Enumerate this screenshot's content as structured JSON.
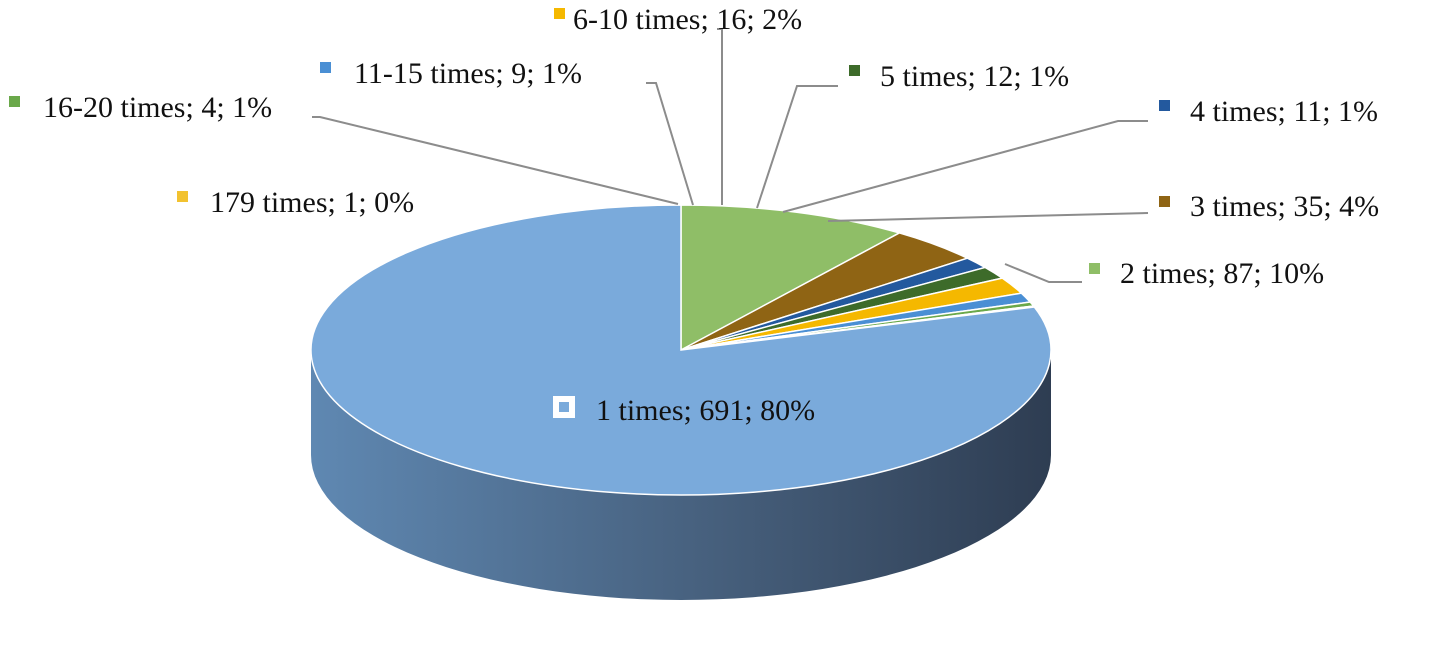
{
  "chart_data": {
    "type": "pie",
    "title": "",
    "slices": [
      {
        "label": "1 times; 691; 80%",
        "category": "1 times",
        "value": 691,
        "percent": 80,
        "color": "#7aaadb",
        "side_color": "#5b80a6"
      },
      {
        "label": "2 times; 87; 10%",
        "category": "2 times",
        "value": 87,
        "percent": 10,
        "color": "#8fbe67",
        "side_color": "#6a8f4b"
      },
      {
        "label": "3 times; 35; 4%",
        "category": "3 times",
        "value": 35,
        "percent": 4,
        "color": "#8f6414",
        "side_color": "#6b4a0e"
      },
      {
        "label": "4 times; 11; 1%",
        "category": "4 times",
        "value": 11,
        "percent": 1,
        "color": "#23599e",
        "side_color": "#1a4377"
      },
      {
        "label": "5 times; 12; 1%",
        "category": "5 times",
        "value": 12,
        "percent": 1,
        "color": "#3d6b2a",
        "side_color": "#2d501f"
      },
      {
        "label": "6-10 times; 16; 2%",
        "category": "6-10 times",
        "value": 16,
        "percent": 2,
        "color": "#f5b800",
        "side_color": "#b88a00"
      },
      {
        "label": "11-15 times; 9; 1%",
        "category": "11-15 times",
        "value": 9,
        "percent": 1,
        "color": "#4a8fd4",
        "side_color": "#376ba0"
      },
      {
        "label": "16-20 times; 4; 1%",
        "category": "16-20 times",
        "value": 4,
        "percent": 1,
        "color": "#6aa84a",
        "side_color": "#4f7e37"
      },
      {
        "label": "179 times; 1; 0%",
        "category": "179 times",
        "value": 1,
        "percent": 0,
        "color": "#f2c230",
        "side_color": "#b69124"
      }
    ],
    "legend_placement": "leader-line labels around the pie"
  }
}
